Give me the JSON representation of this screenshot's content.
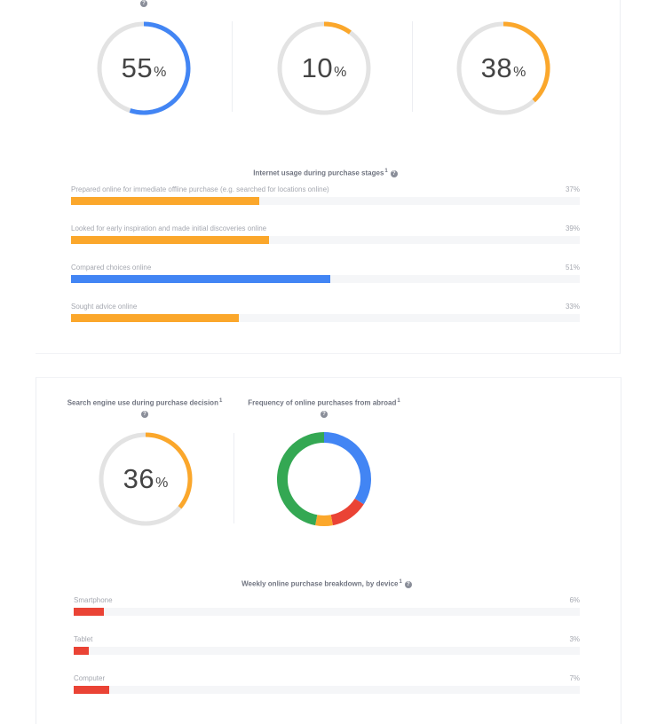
{
  "colors": {
    "blue": "#4285f4",
    "orange": "#fba72b",
    "red": "#ea4335",
    "green": "#34a853",
    "track": "#e3e3e3",
    "bar_track": "#f5f6f8"
  },
  "top_help_icon": "help-circle-icon",
  "chart_data": [
    {
      "type": "pie",
      "title": "",
      "values": [
        55
      ],
      "display": "55",
      "unit": "%",
      "color": "blue",
      "direction": "clockwise"
    },
    {
      "type": "pie",
      "title": "",
      "values": [
        10
      ],
      "display": "10",
      "unit": "%",
      "color": "orange",
      "direction": "clockwise"
    },
    {
      "type": "pie",
      "title": "",
      "values": [
        38
      ],
      "display": "38",
      "unit": "%",
      "color": "orange",
      "direction": "clockwise"
    },
    {
      "type": "bar",
      "orientation": "horizontal",
      "title": "Internet usage during purchase stages",
      "footnote": "1",
      "categories": [
        "Prepared online for immediate offline purchase (e.g. searched for locations online)",
        "Looked for early inspiration and made initial discoveries online",
        "Compared choices online",
        "Sought advice online"
      ],
      "values": [
        37,
        39,
        51,
        33
      ],
      "value_labels": [
        "37%",
        "39%",
        "51%",
        "33%"
      ],
      "colors": [
        "orange",
        "orange",
        "blue",
        "orange"
      ],
      "xlim": [
        0,
        100
      ]
    },
    {
      "type": "pie",
      "title": "Search engine use during purchase decision",
      "footnote": "1",
      "values": [
        36
      ],
      "display": "36",
      "unit": "%",
      "color": "orange",
      "direction": "clockwise"
    },
    {
      "type": "pie",
      "style": "donut",
      "title": "Frequency of online purchases from abroad",
      "footnote": "1",
      "values": [
        34,
        13,
        6,
        47
      ],
      "colors": [
        "blue",
        "red",
        "orange",
        "green"
      ]
    },
    {
      "type": "bar",
      "orientation": "horizontal",
      "title": "Weekly online purchase breakdown, by device",
      "footnote": "1",
      "categories": [
        "Smartphone",
        "Tablet",
        "Computer"
      ],
      "values": [
        6,
        3,
        7
      ],
      "value_labels": [
        "6%",
        "3%",
        "7%"
      ],
      "colors": [
        "red",
        "red",
        "red"
      ],
      "xlim": [
        0,
        100
      ]
    }
  ]
}
